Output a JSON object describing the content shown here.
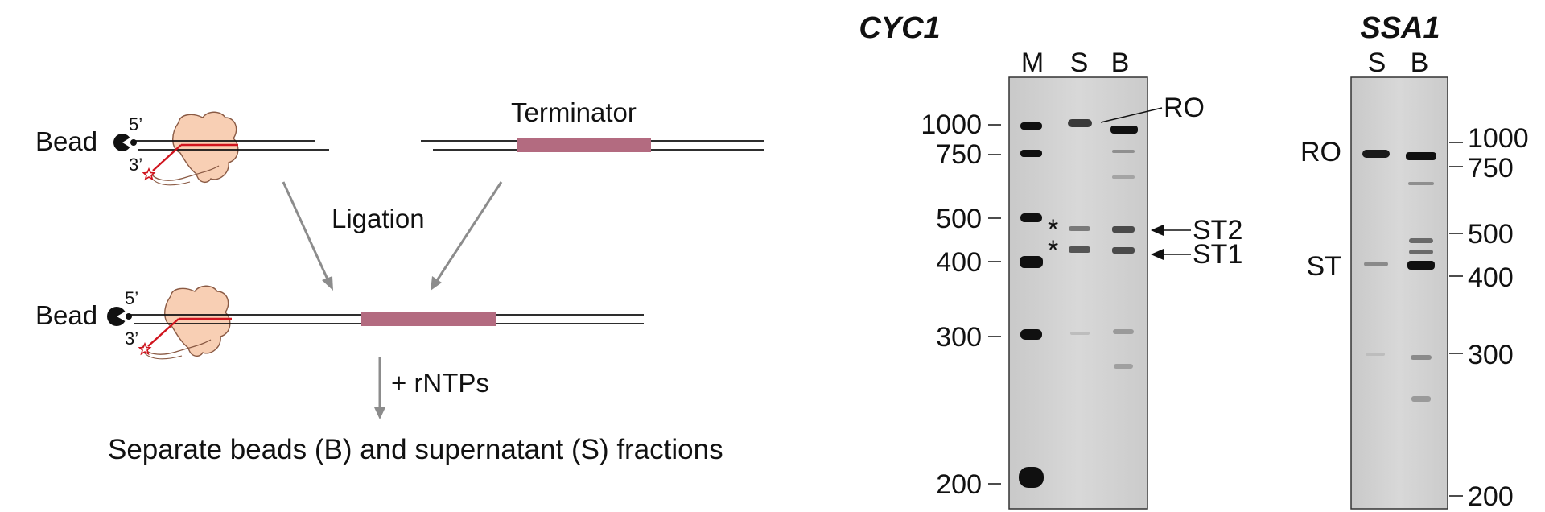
{
  "schematic": {
    "bead_label": "Bead",
    "five_prime": "5’",
    "three_prime": "3’",
    "terminator_label": "Terminator",
    "ligation_label": "Ligation",
    "rntp_label": "+ rNTPs",
    "separation_text": "Separate beads (B) and supernatant (S) fractions"
  },
  "gel_cyc1": {
    "title": "CYC1",
    "lanes": [
      "M",
      "S",
      "B"
    ],
    "markers": [
      "1000",
      "750",
      "500",
      "400",
      "300",
      "200"
    ],
    "asterisk": "*",
    "annotations": {
      "ro": "RO",
      "st2": "ST2",
      "st1": "ST1"
    }
  },
  "gel_ssa1": {
    "title": "SSA1",
    "lanes": [
      "S",
      "B"
    ],
    "markers": [
      "1000",
      "750",
      "500",
      "400",
      "300",
      "200"
    ],
    "annotations": {
      "ro": "RO",
      "st": "ST"
    }
  },
  "colors": {
    "rna": "#d0141e",
    "polymerase": "#f8cfb4",
    "polymerase_outline": "#8a5a44",
    "terminator": "#b36b80",
    "arrow": "#8c8c8c",
    "gel_bg": "#d2d2d2",
    "band": "#101010"
  }
}
